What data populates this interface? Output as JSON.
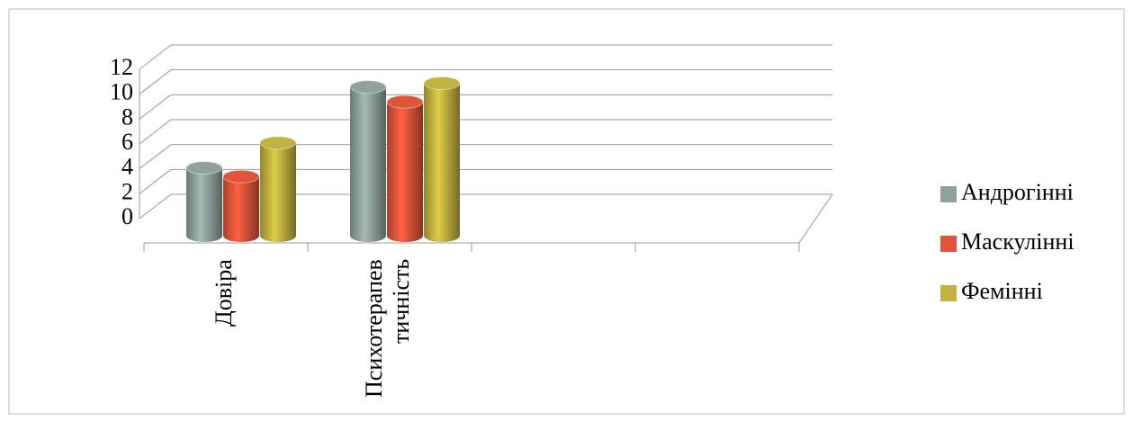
{
  "chart_data": {
    "type": "bar3d_cylinder",
    "categories": [
      "Довіра",
      "Психотерапевтичність",
      null,
      null
    ],
    "series": [
      {
        "name": "Андрогінні",
        "color": "#8fa39c",
        "values": [
          3.5,
          10,
          null,
          null
        ]
      },
      {
        "name": "Маскулінні",
        "color": "#e0553a",
        "values": [
          2.8,
          8.8,
          null,
          null
        ]
      },
      {
        "name": "Фемінні",
        "color": "#c2b23e",
        "values": [
          5.5,
          10.3,
          null,
          null
        ]
      }
    ],
    "ylim": [
      0,
      12
    ],
    "yticks": [
      0,
      2,
      4,
      6,
      8,
      10,
      12
    ],
    "grid": true,
    "legend": "right"
  }
}
